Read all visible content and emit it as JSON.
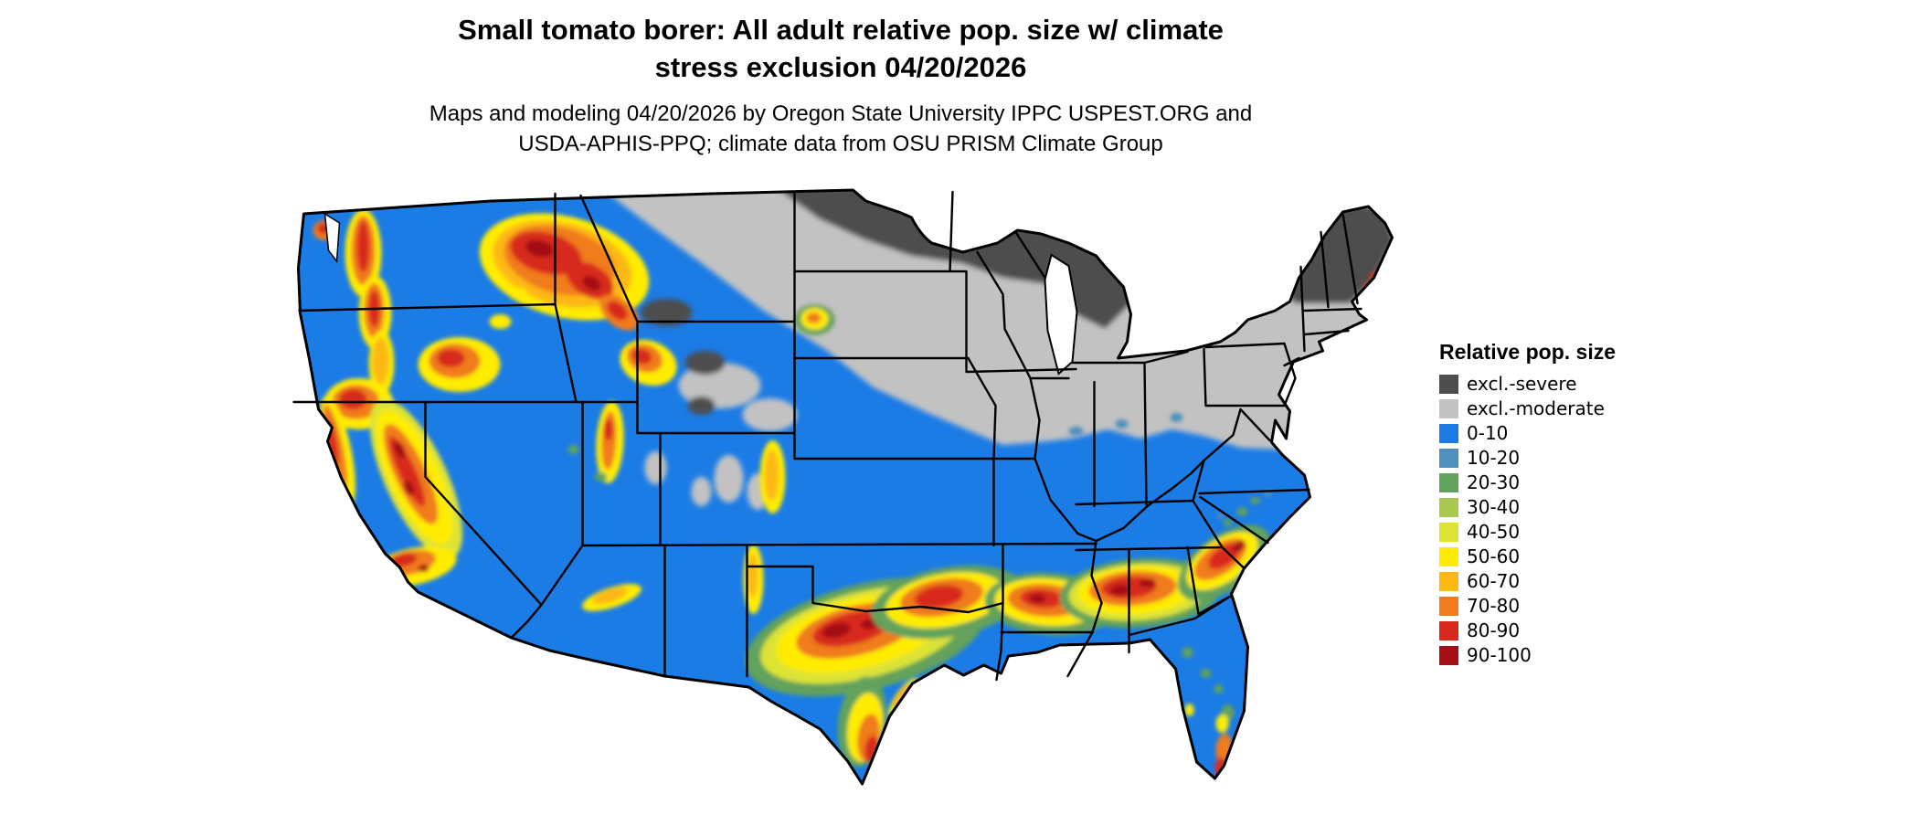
{
  "title": {
    "line1": "Small tomato borer: All adult relative pop. size w/ climate",
    "line2": "stress exclusion 04/20/2026"
  },
  "subtitle": {
    "line1": "Maps and modeling 04/20/2026 by Oregon State University IPPC USPEST.ORG and",
    "line2": "USDA-APHIS-PPQ; climate data from OSU PRISM Climate Group"
  },
  "legend": {
    "title": "Relative pop. size",
    "entries": [
      {
        "key": "exclSevere",
        "label": "excl.-severe",
        "color": "#4d4d4d"
      },
      {
        "key": "exclModerate",
        "label": "excl.-moderate",
        "color": "#c2c2c2"
      },
      {
        "key": "b0",
        "label": "0-10",
        "color": "#1b7ce6"
      },
      {
        "key": "b10",
        "label": "10-20",
        "color": "#4f8fbe"
      },
      {
        "key": "b20",
        "label": "20-30",
        "color": "#62a25c"
      },
      {
        "key": "b30",
        "label": "30-40",
        "color": "#a9c84e"
      },
      {
        "key": "b40",
        "label": "40-50",
        "color": "#dde335"
      },
      {
        "key": "b50",
        "label": "50-60",
        "color": "#ffec00"
      },
      {
        "key": "b60",
        "label": "60-70",
        "color": "#fdb813"
      },
      {
        "key": "b70",
        "label": "70-80",
        "color": "#f07c1d"
      },
      {
        "key": "b80",
        "label": "80-90",
        "color": "#d8291c"
      },
      {
        "key": "b90",
        "label": "90-100",
        "color": "#a50f15"
      }
    ]
  }
}
